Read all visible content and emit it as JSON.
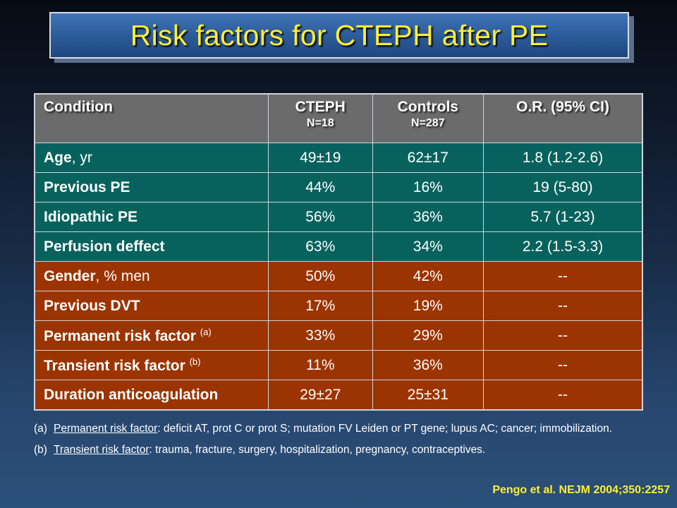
{
  "title": "Risk factors for CTEPH after PE",
  "table": {
    "headers": {
      "condition": "Condition",
      "cteph": "CTEPH",
      "cteph_n": "N=18",
      "controls": "Controls",
      "controls_n": "N=287",
      "or": "O.R.  (95% CI)"
    },
    "rows": [
      {
        "label": "Age",
        "suffix": ", yr",
        "sup": "",
        "cteph": "49±19",
        "controls": "62±17",
        "or": "1.8  (1.2-2.6)",
        "color": "teal"
      },
      {
        "label": "Previous PE",
        "suffix": "",
        "sup": "",
        "cteph": "44%",
        "controls": "16%",
        "or": "19  (5-80)",
        "color": "teal"
      },
      {
        "label": "Idiopathic PE",
        "suffix": "",
        "sup": "",
        "cteph": "56%",
        "controls": "36%",
        "or": "5.7  (1-23)",
        "color": "teal"
      },
      {
        "label": "Perfusion deffect",
        "suffix": "",
        "sup": "",
        "cteph": "63%",
        "controls": "34%",
        "or": "2.2  (1.5-3.3)",
        "color": "teal"
      },
      {
        "label": "Gender",
        "suffix": ", % men",
        "sup": "",
        "cteph": "50%",
        "controls": "42%",
        "or": "--",
        "color": "rust"
      },
      {
        "label": "Previous DVT",
        "suffix": "",
        "sup": "",
        "cteph": "17%",
        "controls": "19%",
        "or": "--",
        "color": "rust"
      },
      {
        "label": "Permanent risk factor",
        "suffix": "",
        "sup": "(a)",
        "cteph": "33%",
        "controls": "29%",
        "or": "--",
        "color": "rust"
      },
      {
        "label": "Transient risk factor",
        "suffix": "",
        "sup": "(b)",
        "cteph": "11%",
        "controls": "36%",
        "or": "--",
        "color": "rust"
      },
      {
        "label": "Duration anticoagulation",
        "suffix": "",
        "sup": "",
        "cteph": "29±27",
        "controls": "25±31",
        "or": "--",
        "color": "rust"
      }
    ]
  },
  "notes": [
    {
      "tag": "(a)",
      "term": "Permanent risk factor",
      "text": ": deficit AT, prot C or prot S; mutation FV Leiden or PT gene; lupus AC; cancer; immobilization."
    },
    {
      "tag": "(b)",
      "term": "Transient risk factor",
      "text": ": trauma, fracture, surgery, hospitalization, pregnancy, contraceptives."
    }
  ],
  "citation": "Pengo et al. NEJM 2004;350:2257",
  "colors": {
    "title_text": "#ffef33",
    "header_bg": "#6b6b6b",
    "teal_row": "#07625e",
    "rust_row": "#9b3400"
  }
}
